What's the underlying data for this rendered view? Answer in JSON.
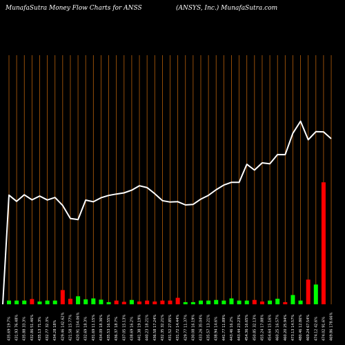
{
  "header": {
    "title_left": "MunafaSutra  Money Flow  Charts for ANSS",
    "title_right": "(ANSYS,  Inc.) MunafaSutra.com"
  },
  "colors": {
    "background": "#000000",
    "gridline": "#b8600b",
    "price_line": "#ffffff",
    "up_bar": "#00ff00",
    "down_bar": "#ff0000",
    "label": "#ffffff"
  },
  "chart_data": {
    "type": "bar",
    "categories": [
      "435.69 19.7%",
      "431.93 76.48%",
      "435.88 33.3%",
      "432.86 51.46%",
      "435.13 71.3%",
      "432.77 32.3%",
      "434.28 18%",
      "429.46 142.62%",
      "421.58 15.77%",
      "420.91 154.06%",
      "432.69 18.3%",
      "431.69 11.15%",
      "434.09 18.36%",
      "435.53 16.55%",
      "436.37 18.7%",
      "437.05 15.13%",
      "438.69 16.2%",
      "441.38 19.19%",
      "440.23 18.21%",
      "436.58 17.24%",
      "432.35 32.21%",
      "431.52 27.85%",
      "431.72 14.44%",
      "429.77 11.37%",
      "430.08 16.19%",
      "433.26 35.04%",
      "435.57 13.21%",
      "438.94 14.6%",
      "441.77 11.89%",
      "443.46 16.2%",
      "443.44 23.23%",
      "454.36 16.65%",
      "450.85 32.13%",
      "455.24 17.88%",
      "454.64 15.16%",
      "460.25 16.57%",
      "460.20 25.94%",
      "473.13 14.57%",
      "480.46 12.86%",
      "469.24 67.54%",
      "474.12 42.6%",
      "474.02 91.6%",
      "469.86 178.66%"
    ],
    "series": [
      {
        "values": [
          435.69,
          431.93,
          435.88,
          432.86,
          435.13,
          432.77,
          434.28,
          429.46,
          421.58,
          420.91,
          432.69,
          431.69,
          434.09,
          435.53,
          436.37,
          437.05,
          438.69,
          441.38,
          440.23,
          436.58,
          432.35,
          431.52,
          431.72,
          429.77,
          430.08,
          433.26,
          435.57,
          438.94,
          441.77,
          443.46,
          443.44,
          454.36,
          450.85,
          455.24,
          454.64,
          460.25,
          460.2,
          473.13,
          480.46,
          469.24,
          474.12,
          474.02,
          469.86
        ]
      },
      {
        "values": [
          1.2,
          1.2,
          1.2,
          1.7,
          0.9,
          1.2,
          1.2,
          4.6,
          1.8,
          2.6,
          1.6,
          1.9,
          1.5,
          0.7,
          1.2,
          0.8,
          1.4,
          0.9,
          1.2,
          0.9,
          1.2,
          1.2,
          2.1,
          0.7,
          0.7,
          1.2,
          1.2,
          1.4,
          1.2,
          1.9,
          1.2,
          1.2,
          1.4,
          0.9,
          1.2,
          1.8,
          0.7,
          3.0,
          1.2,
          8.0,
          6.4,
          39.5,
          0
        ]
      }
    ],
    "direction": [
      "up",
      "up",
      "up",
      "down",
      "up",
      "up",
      "up",
      "down",
      "down",
      "up",
      "up",
      "up",
      "up",
      "up",
      "down",
      "down",
      "up",
      "down",
      "down",
      "down",
      "down",
      "down",
      "down",
      "up",
      "up",
      "up",
      "up",
      "up",
      "up",
      "up",
      "up",
      "up",
      "down",
      "down",
      "up",
      "up",
      "down",
      "up",
      "up",
      "down",
      "up",
      "down",
      "down"
    ],
    "price_range": [
      370,
      487
    ],
    "volume_range": [
      0,
      40
    ],
    "grid": true
  }
}
